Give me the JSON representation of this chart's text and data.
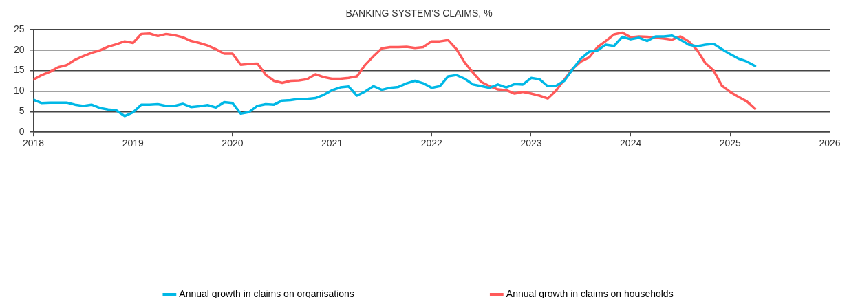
{
  "chart_data": {
    "type": "line",
    "title": "BANKING SYSTEM’S CLAIMS, %",
    "x": [
      "2018-01",
      "2018-02",
      "2018-03",
      "2018-04",
      "2018-05",
      "2018-06",
      "2018-07",
      "2018-08",
      "2018-09",
      "2018-10",
      "2018-11",
      "2018-12",
      "2019-01",
      "2019-02",
      "2019-03",
      "2019-04",
      "2019-05",
      "2019-06",
      "2019-07",
      "2019-08",
      "2019-09",
      "2019-10",
      "2019-11",
      "2019-12",
      "2020-01",
      "2020-02",
      "2020-03",
      "2020-04",
      "2020-05",
      "2020-06",
      "2020-07",
      "2020-08",
      "2020-09",
      "2020-10",
      "2020-11",
      "2020-12",
      "2021-01",
      "2021-02",
      "2021-03",
      "2021-04",
      "2021-05",
      "2021-06",
      "2021-07",
      "2021-08",
      "2021-09",
      "2021-10",
      "2021-11",
      "2021-12",
      "2022-01",
      "2022-02",
      "2022-03",
      "2022-04",
      "2022-05",
      "2022-06",
      "2022-07",
      "2022-08",
      "2022-09",
      "2022-10",
      "2022-11",
      "2022-12",
      "2023-01",
      "2023-02",
      "2023-03",
      "2023-04",
      "2023-05",
      "2023-06",
      "2023-07",
      "2023-08",
      "2023-09",
      "2023-10",
      "2023-11",
      "2023-12",
      "2024-01",
      "2024-02",
      "2024-03",
      "2024-04",
      "2024-05",
      "2024-06",
      "2024-07",
      "2024-08",
      "2024-09",
      "2024-10",
      "2024-11",
      "2024-12",
      "2025-01",
      "2025-02",
      "2025-03",
      "2025-04"
    ],
    "series": [
      {
        "name": "Annual growth in claims on organisations",
        "color": "#00b8e6",
        "values": [
          7.9,
          7.1,
          7.2,
          7.2,
          7.2,
          6.7,
          6.4,
          6.7,
          5.9,
          5.5,
          5.3,
          3.9,
          4.8,
          6.7,
          6.7,
          6.8,
          6.4,
          6.4,
          6.9,
          6.1,
          6.3,
          6.6,
          6.0,
          7.3,
          7.1,
          4.5,
          4.9,
          6.4,
          6.8,
          6.7,
          7.7,
          7.8,
          8.1,
          8.1,
          8.3,
          9.1,
          10.2,
          10.9,
          11.1,
          8.9,
          9.9,
          11.2,
          10.3,
          10.8,
          11.0,
          11.9,
          12.5,
          11.9,
          10.8,
          11.2,
          13.6,
          13.9,
          13.0,
          11.6,
          11.2,
          10.8,
          11.6,
          10.9,
          11.7,
          11.6,
          13.2,
          12.9,
          11.2,
          11.3,
          12.5,
          15.3,
          17.9,
          19.6,
          19.9,
          21.3,
          21.0,
          23.2,
          22.6,
          23.0,
          22.2,
          23.3,
          23.3,
          23.5,
          22.5,
          21.3,
          20.9,
          21.3,
          21.5,
          20.2,
          19.0,
          17.9,
          17.2,
          16.1
        ]
      },
      {
        "name": "Annual growth in claims on households",
        "color": "#ff5a5a",
        "values": [
          12.8,
          13.9,
          14.7,
          15.8,
          16.3,
          17.6,
          18.5,
          19.3,
          19.9,
          20.8,
          21.4,
          22.1,
          21.7,
          23.9,
          24.0,
          23.4,
          23.9,
          23.6,
          23.1,
          22.2,
          21.7,
          21.1,
          20.2,
          19.1,
          19.1,
          16.4,
          16.6,
          16.7,
          14.0,
          12.5,
          12.0,
          12.5,
          12.6,
          12.9,
          14.1,
          13.4,
          13.0,
          13.0,
          13.2,
          13.6,
          16.4,
          18.5,
          20.4,
          20.7,
          20.7,
          20.8,
          20.5,
          20.7,
          22.1,
          22.1,
          22.4,
          20.2,
          16.9,
          14.5,
          12.2,
          11.2,
          10.4,
          10.2,
          9.4,
          9.8,
          9.4,
          8.9,
          8.2,
          10.1,
          12.8,
          15.4,
          17.2,
          18.2,
          20.7,
          22.2,
          23.8,
          24.2,
          23.1,
          23.3,
          23.2,
          23.0,
          22.8,
          22.5,
          23.3,
          22.1,
          20.0,
          16.8,
          15.0,
          11.3,
          9.8,
          8.6,
          7.5,
          5.7
        ]
      }
    ],
    "xlim": [
      "2018-01",
      "2026-01"
    ],
    "xticks": [
      {
        "value": "2018",
        "label": "2018"
      },
      {
        "value": "2019",
        "label": "2019"
      },
      {
        "value": "2020",
        "label": "2020"
      },
      {
        "value": "2021",
        "label": "2021"
      },
      {
        "value": "2022",
        "label": "2022"
      },
      {
        "value": "2023",
        "label": "2023"
      },
      {
        "value": "2024",
        "label": "2024"
      },
      {
        "value": "2025",
        "label": "2025"
      },
      {
        "value": "2026",
        "label": "2026"
      }
    ],
    "ylim": [
      0,
      25
    ],
    "yticks": [
      0,
      5,
      10,
      15,
      20,
      25
    ],
    "grid": "y",
    "legend": "bottom",
    "marker": "none",
    "line_style": "solid"
  }
}
